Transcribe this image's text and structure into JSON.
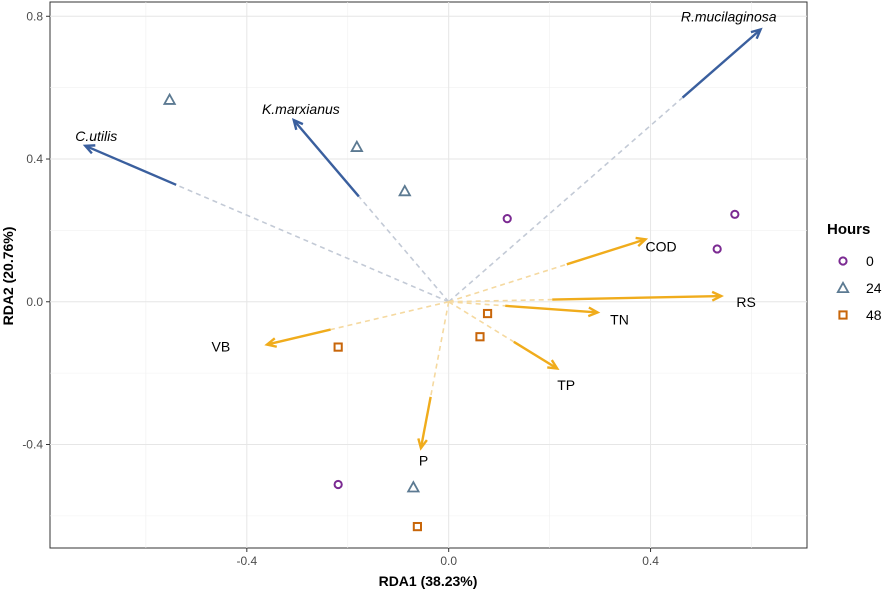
{
  "chart_data": {
    "type": "scatter",
    "subtype": "RDA biplot",
    "xlabel": "RDA1 (38.23%)",
    "ylabel": "RDA2 (20.76%)",
    "xlim": [
      -0.79,
      0.71
    ],
    "ylim": [
      -0.69,
      0.84
    ],
    "x_ticks": [
      -0.4,
      0.0,
      0.4
    ],
    "x_tick_labels": [
      "-0.4",
      "0.0",
      "0.4"
    ],
    "y_ticks": [
      -0.4,
      0.0,
      0.4,
      0.8
    ],
    "y_tick_labels": [
      "-0.4",
      "0.0",
      "0.4",
      "0.8"
    ],
    "grid": true,
    "legend": {
      "title": "Hours",
      "placement": "right",
      "entries": [
        {
          "label": "0",
          "shape": "circle",
          "color": "#7b2a92"
        },
        {
          "label": "24",
          "shape": "triangle",
          "color": "#5c7a92"
        },
        {
          "label": "48",
          "shape": "square",
          "color": "#c8660a"
        }
      ]
    },
    "points": [
      {
        "group": "0",
        "x": 0.116,
        "y": 0.233
      },
      {
        "group": "0",
        "x": 0.567,
        "y": 0.245
      },
      {
        "group": "0",
        "x": 0.532,
        "y": 0.148
      },
      {
        "group": "0",
        "x": -0.219,
        "y": -0.512
      },
      {
        "group": "24",
        "x": -0.553,
        "y": 0.566
      },
      {
        "group": "24",
        "x": -0.182,
        "y": 0.434
      },
      {
        "group": "24",
        "x": -0.087,
        "y": 0.31
      },
      {
        "group": "24",
        "x": -0.07,
        "y": -0.52
      },
      {
        "group": "48",
        "x": -0.219,
        "y": -0.127
      },
      {
        "group": "48",
        "x": 0.077,
        "y": -0.033
      },
      {
        "group": "48",
        "x": 0.062,
        "y": -0.098
      },
      {
        "group": "48",
        "x": -0.062,
        "y": -0.63
      }
    ],
    "species_vectors": [
      {
        "label": "R.mucilaginosa",
        "x": 0.618,
        "y": 0.763,
        "solid_from": 0.75,
        "label_x": 0.46,
        "label_y": 0.8
      },
      {
        "label": "K.marxianus",
        "x": -0.307,
        "y": 0.509,
        "solid_from": 0.58,
        "label_x": -0.37,
        "label_y": 0.54
      },
      {
        "label": "C.utilis",
        "x": -0.72,
        "y": 0.437,
        "solid_from": 0.75,
        "label_x": -0.74,
        "label_y": 0.465
      }
    ],
    "env_vectors": [
      {
        "label": "COD",
        "x": 0.39,
        "y": 0.175,
        "solid_from": 0.6,
        "label_x": 0.39,
        "label_y": 0.155
      },
      {
        "label": "RS",
        "x": 0.54,
        "y": 0.016,
        "solid_from": 0.38,
        "label_x": 0.57,
        "label_y": 0.0
      },
      {
        "label": "TN",
        "x": 0.295,
        "y": -0.03,
        "solid_from": 0.38,
        "label_x": 0.32,
        "label_y": -0.05
      },
      {
        "label": "TP",
        "x": 0.215,
        "y": -0.187,
        "solid_from": 0.6,
        "label_x": 0.215,
        "label_y": -0.233
      },
      {
        "label": "VB",
        "x": -0.36,
        "y": -0.12,
        "solid_from": 0.65,
        "label_x": -0.47,
        "label_y": -0.125
      },
      {
        "label": "P",
        "x": -0.055,
        "y": -0.41,
        "solid_from": 0.65,
        "label_x": -0.059,
        "label_y": -0.445
      }
    ],
    "colors": {
      "species_arrow": "#3a5f9e",
      "species_dash": "#c3cad6",
      "env_arrow": "#f0ac1c",
      "env_dash": "#f5d9a0"
    }
  }
}
